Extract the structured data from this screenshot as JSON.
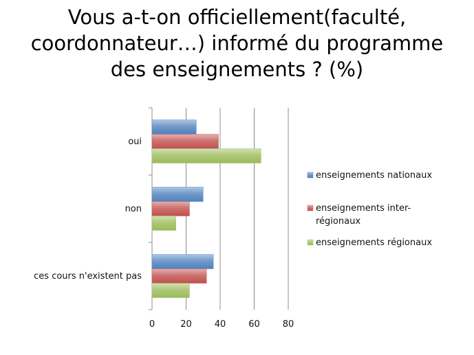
{
  "title_lines": [
    "Vous a-t-on officiellement(faculté,",
    "coordonnateur…) informé du programme",
    "des enseignements ? (%)"
  ],
  "chart_data": {
    "type": "bar",
    "orientation": "horizontal",
    "title": "Vous a-t-on officiellement(faculté, coordonnateur…) informé du programme des enseignements ? (%)",
    "categories": [
      "oui",
      "non",
      "ces cours n'existent pas"
    ],
    "series": [
      {
        "name": "enseignements nationaux",
        "values": [
          26,
          30,
          36
        ],
        "color": "#4f81bd"
      },
      {
        "name": "enseignements inter-régionaux",
        "values": [
          39,
          22,
          32
        ],
        "color": "#c0504d"
      },
      {
        "name": "enseignements régionaux",
        "values": [
          64,
          14,
          22
        ],
        "color": "#9bbb59"
      }
    ],
    "legend_display": [
      [
        "enseignements nationaux"
      ],
      [
        "enseignements inter-",
        "régionaux"
      ],
      [
        "enseignements régionaux"
      ]
    ],
    "xlim": [
      0,
      80
    ],
    "xticks": [
      0,
      20,
      40,
      60,
      80
    ],
    "grid": true,
    "legend_position": "right"
  }
}
